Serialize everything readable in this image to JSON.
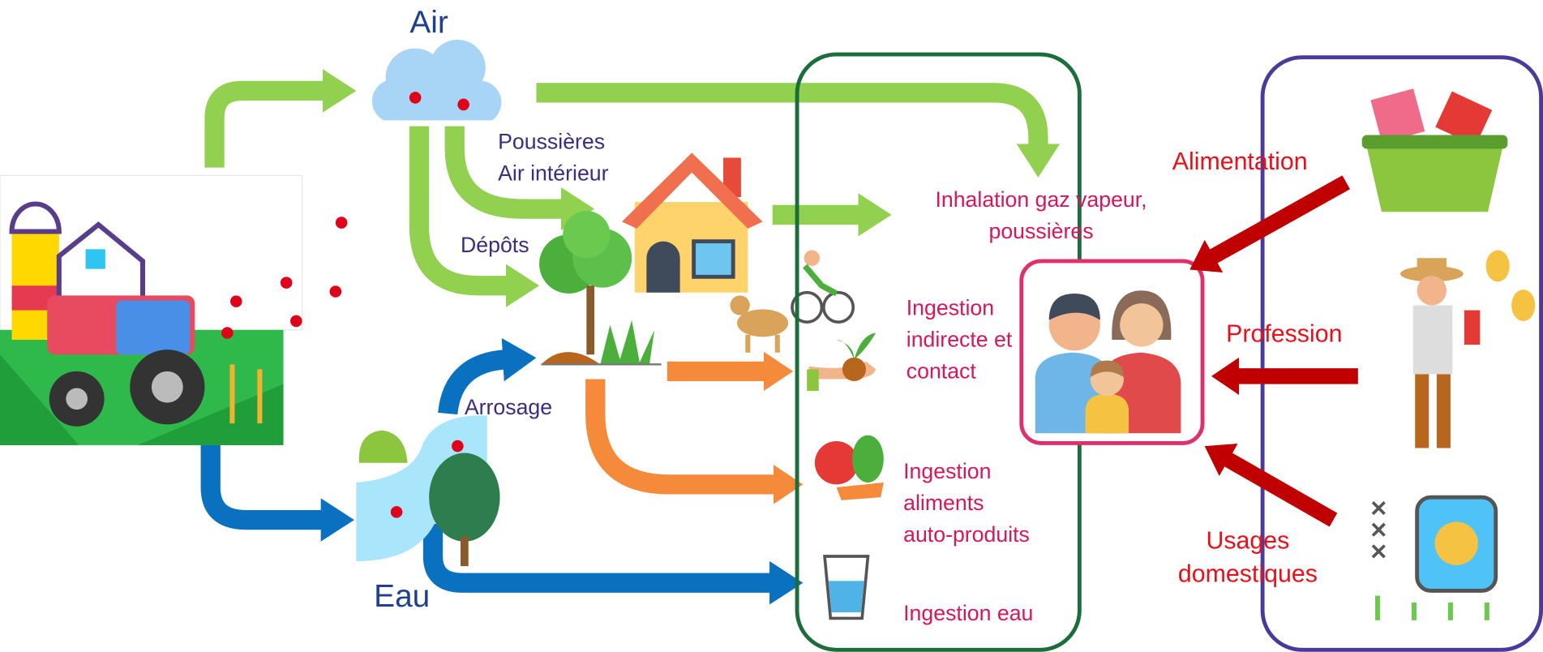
{
  "media": {
    "air": "Air",
    "eau": "Eau"
  },
  "pathways": {
    "poussieres": [
      "Poussières",
      "Air intérieur"
    ],
    "depots": "Dépôts",
    "arrosage": "Arrosage"
  },
  "exposures": [
    {
      "lines": [
        "Inhalation gaz vapeur,",
        "poussières"
      ]
    },
    {
      "lines": [
        "Ingestion",
        "indirecte et",
        "contact"
      ]
    },
    {
      "lines": [
        "Ingestion",
        "aliments",
        "auto-produits"
      ]
    },
    {
      "lines": [
        "Ingestion eau"
      ]
    }
  ],
  "other_sources": [
    {
      "lines": [
        "Alimentation"
      ]
    },
    {
      "lines": [
        "Profession"
      ]
    },
    {
      "lines": [
        "Usages",
        "domestiques"
      ]
    }
  ]
}
